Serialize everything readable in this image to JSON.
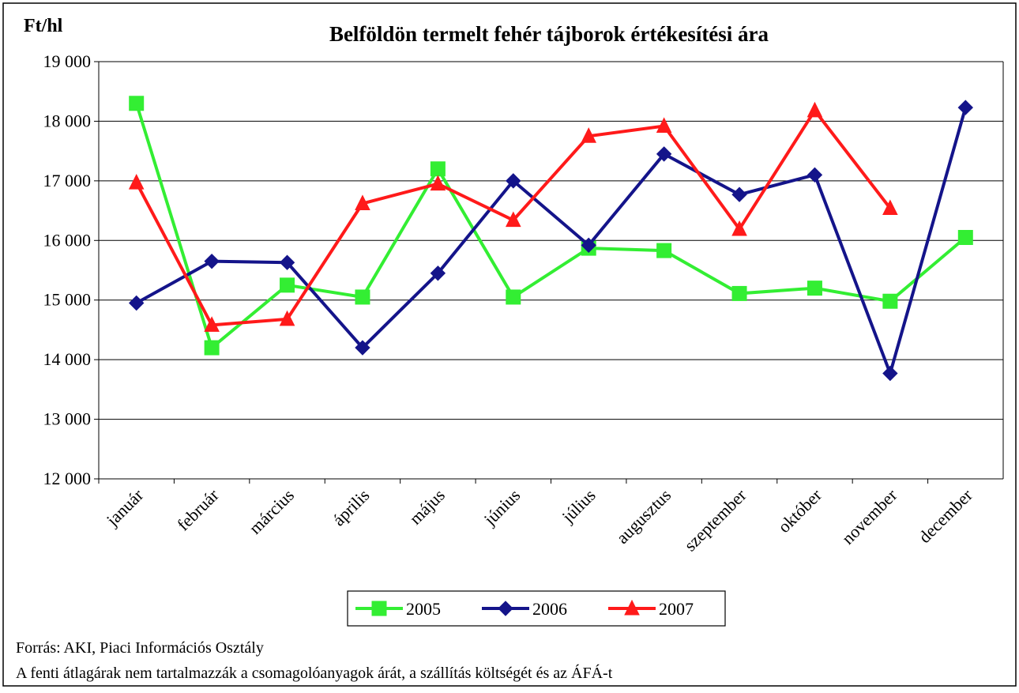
{
  "chart_data": {
    "type": "line",
    "title": "Belföldön termelt fehér tájborok értékesítési ára",
    "y_axis_label": "Ft/hl",
    "categories": [
      "január",
      "február",
      "március",
      "április",
      "május",
      "június",
      "július",
      "augusztus",
      "szeptember",
      "október",
      "november",
      "december"
    ],
    "series": [
      {
        "name": "2005",
        "color": "#33ee33",
        "marker": "square",
        "values": [
          18300,
          14200,
          15250,
          15050,
          17200,
          15050,
          15870,
          15830,
          15110,
          15200,
          14980,
          16050
        ]
      },
      {
        "name": "2006",
        "color": "#14148a",
        "marker": "diamond",
        "values": [
          14950,
          15650,
          15630,
          14200,
          15450,
          17000,
          15920,
          17450,
          16770,
          17100,
          13770,
          18230
        ]
      },
      {
        "name": "2007",
        "color": "#ff1a1a",
        "marker": "triangle",
        "values": [
          16970,
          14580,
          14680,
          16620,
          16950,
          16340,
          17750,
          17920,
          16190,
          18180,
          16540,
          null
        ]
      }
    ],
    "ylim": [
      12000,
      19000
    ],
    "yticks": [
      {
        "value": 12000,
        "label": "12 000"
      },
      {
        "value": 13000,
        "label": "13 000"
      },
      {
        "value": 14000,
        "label": "14 000"
      },
      {
        "value": 15000,
        "label": "15 000"
      },
      {
        "value": 16000,
        "label": "16 000"
      },
      {
        "value": 17000,
        "label": "17 000"
      },
      {
        "value": 18000,
        "label": "18 000"
      },
      {
        "value": 19000,
        "label": "19 000"
      }
    ],
    "grid": true,
    "legend": "bottom",
    "notes": [
      "Forrás: AKI, Piaci Információs Osztály",
      "A fenti átlagárak nem tartalmazzák a csomagolóanyagok árát, a szállítás költségét  és az ÁFÁ-t"
    ]
  }
}
